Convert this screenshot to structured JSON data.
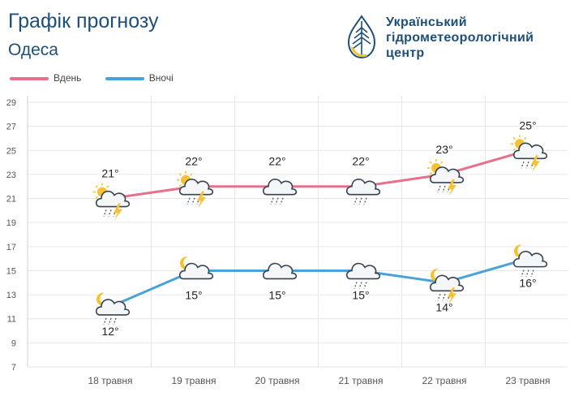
{
  "header": {
    "title": "Графік прогнозу",
    "city": "Одеса"
  },
  "logo": {
    "line1": "Український",
    "line2": "гідрометеорологічний",
    "line3": "центр",
    "icon": "drop-logo-icon"
  },
  "colors": {
    "day": "#e5718c",
    "night": "#4aa3d6",
    "title": "#1f4e79",
    "grid": "#e6e6e6"
  },
  "legend": {
    "day_label": "Вдень",
    "night_label": "Вночі"
  },
  "chart_data": {
    "type": "line",
    "categories": [
      "18 травня",
      "19 травня",
      "20 травня",
      "21 травня",
      "22 травня",
      "23 травня"
    ],
    "series": [
      {
        "name": "Вдень",
        "values": [
          21,
          22,
          22,
          22,
          23,
          25
        ],
        "labels": [
          "21°",
          "22°",
          "22°",
          "22°",
          "23°",
          "25°"
        ],
        "icons": [
          "sun-cloud-rain-thunder-icon",
          "sun-cloud-rain-thunder-icon",
          "cloud-rain-icon",
          "cloud-rain-icon",
          "sun-cloud-rain-thunder-icon",
          "sun-cloud-rain-thunder-icon"
        ]
      },
      {
        "name": "Вночі",
        "values": [
          12,
          15,
          15,
          15,
          14,
          16
        ],
        "labels": [
          "12°",
          "15°",
          "15°",
          "15°",
          "14°",
          "16°"
        ],
        "icons": [
          "moon-cloud-rain-icon",
          "moon-cloud-icon",
          "cloud-icon",
          "cloud-rain-icon",
          "moon-cloud-rain-thunder-icon",
          "moon-cloud-rain-icon"
        ]
      }
    ],
    "yticks": [
      "29",
      "27",
      "25",
      "23",
      "21",
      "19",
      "17",
      "15",
      "13",
      "11",
      "9",
      "7"
    ],
    "ylim": [
      7,
      29
    ],
    "grid": true,
    "legend_position": "top-left"
  }
}
